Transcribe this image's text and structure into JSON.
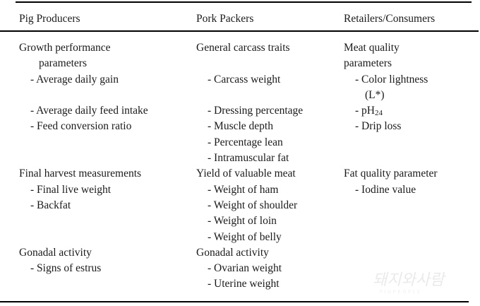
{
  "headers": [
    "Pig Producers",
    "Pork Packers",
    "Retailers/Consumers"
  ],
  "columns": [
    [
      {
        "t": "Growth performance",
        "i": 0
      },
      {
        "t": "parameters",
        "i": 2
      },
      {
        "t": "- Average daily gain",
        "i": 1
      },
      {
        "t": "",
        "i": 0
      },
      {
        "t": "- Average daily feed intake",
        "i": 1
      },
      {
        "t": "- Feed conversion ratio",
        "i": 1
      },
      {
        "t": "",
        "i": 0
      },
      {
        "t": "",
        "i": 0
      },
      {
        "t": "Final harvest measurements",
        "i": 0
      },
      {
        "t": "- Final live weight",
        "i": 1
      },
      {
        "t": "- Backfat",
        "i": 1
      },
      {
        "t": "",
        "i": 0
      },
      {
        "t": "",
        "i": 0
      },
      {
        "t": "Gonadal activity",
        "i": 0
      },
      {
        "t": "- Signs of estrus",
        "i": 1
      }
    ],
    [
      {
        "t": "General carcass traits",
        "i": 0
      },
      {
        "t": "",
        "i": 0
      },
      {
        "t": "- Carcass weight",
        "i": 1
      },
      {
        "t": "",
        "i": 0
      },
      {
        "t": "- Dressing percentage",
        "i": 1
      },
      {
        "t": "- Muscle depth",
        "i": 1
      },
      {
        "t": "- Percentage lean",
        "i": 1
      },
      {
        "t": "- Intramuscular fat",
        "i": 1
      },
      {
        "t": "Yield of valuable meat",
        "i": 0
      },
      {
        "t": "- Weight of ham",
        "i": 1
      },
      {
        "t": "- Weight of shoulder",
        "i": 1
      },
      {
        "t": "- Weight of loin",
        "i": 1
      },
      {
        "t": "- Weight of belly",
        "i": 1
      },
      {
        "t": "Gonadal activity",
        "i": 0
      },
      {
        "t": "- Ovarian weight",
        "i": 1
      },
      {
        "t": "- Uterine weight",
        "i": 1
      }
    ],
    [
      {
        "t": "Meat quality",
        "i": 0
      },
      {
        "t": "parameters",
        "i": 0
      },
      {
        "t": "- Color lightness",
        "i": 1
      },
      {
        "t": "(L*)",
        "i": 3
      },
      {
        "t": "- pH",
        "sub": "24",
        "i": 1
      },
      {
        "t": "- Drip loss",
        "i": 1
      },
      {
        "t": "",
        "i": 0
      },
      {
        "t": "",
        "i": 0
      },
      {
        "t": "Fat quality parameter",
        "i": 0
      },
      {
        "t": "- Iodine value",
        "i": 1
      }
    ]
  ],
  "watermark": {
    "text": "돼지와사람",
    "sub": "PIGPEOPLE"
  }
}
